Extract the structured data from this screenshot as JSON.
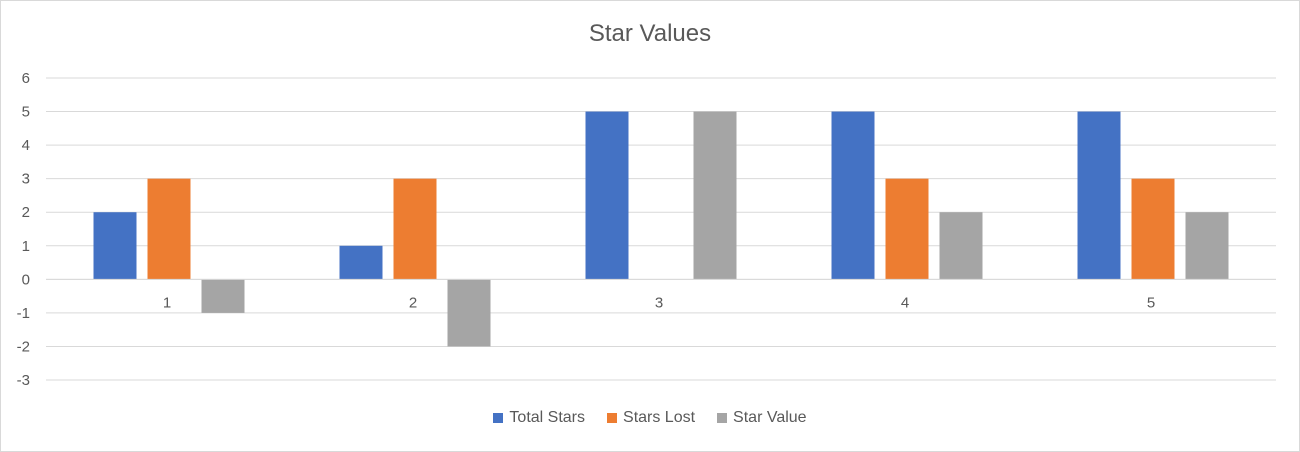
{
  "chart_data": {
    "type": "bar",
    "title": "Star Values",
    "categories": [
      "1",
      "2",
      "3",
      "4",
      "5"
    ],
    "series": [
      {
        "name": "Total Stars",
        "values": [
          2,
          1,
          5,
          5,
          5
        ],
        "color": "#4472c4"
      },
      {
        "name": "Stars Lost",
        "values": [
          3,
          3,
          0,
          3,
          3
        ],
        "color": "#ed7d31"
      },
      {
        "name": "Star Value",
        "values": [
          -1,
          -2,
          5,
          2,
          2
        ],
        "color": "#a5a5a5"
      }
    ],
    "ylim": [
      -3,
      6
    ],
    "yticks": [
      "-3",
      "-2",
      "-1",
      "0",
      "1",
      "2",
      "3",
      "4",
      "5",
      "6"
    ],
    "grid": true,
    "legend_position": "bottom",
    "xlabel": "",
    "ylabel": ""
  }
}
